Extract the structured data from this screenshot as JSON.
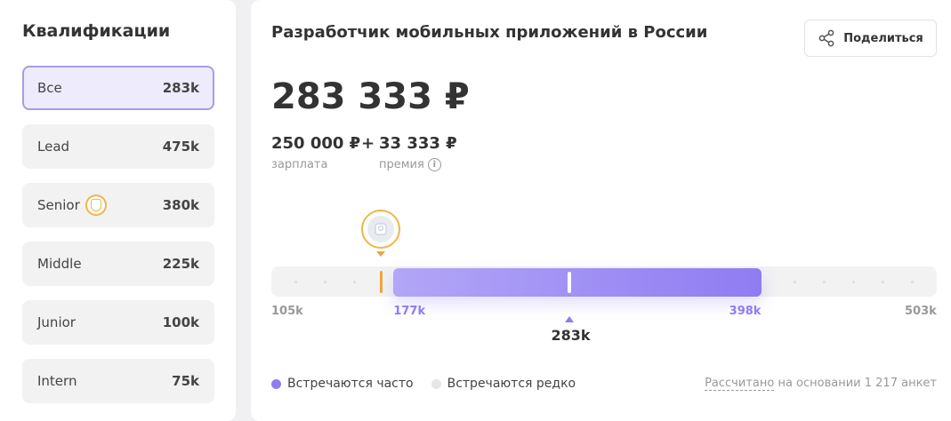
{
  "sidebar": {
    "title": "Квалификации",
    "items": [
      {
        "name": "Все",
        "value": "283k",
        "active": true
      },
      {
        "name": "Lead",
        "value": "475k"
      },
      {
        "name": "Senior",
        "value": "380k",
        "badge": "senior-badge-icon"
      },
      {
        "name": "Middle",
        "value": "225k"
      },
      {
        "name": "Junior",
        "value": "100k"
      },
      {
        "name": "Intern",
        "value": "75k"
      }
    ]
  },
  "main": {
    "title": "Разработчик мобильных приложений в России",
    "share_label": "Поделиться",
    "total": "283 333 ₽",
    "salary_value": "250 000 ₽",
    "plus": "+",
    "bonus_value": "33 333 ₽",
    "salary_label": "зарплата",
    "bonus_label": "премия",
    "info_glyph": "i"
  },
  "chart_data": {
    "type": "range",
    "min": 105,
    "max": 503,
    "frequent_from": 177,
    "frequent_to": 398,
    "median": 283,
    "user_marker": 177,
    "unit": "k",
    "tick_labels": {
      "min": "105k",
      "frequent_from": "177k",
      "frequent_to": "398k",
      "max": "503k"
    },
    "median_label": "283k"
  },
  "legend": {
    "frequent": "Встречаются часто",
    "rare": "Встречаются редко",
    "frequent_color": "#8f7cf2",
    "rare_color": "#e6e6e6"
  },
  "footnote": {
    "link": "Рассчитано",
    "rest": " на основании 1 217 анкет"
  },
  "colors": {
    "accent": "#8f7cf2",
    "accent_light": "#b2a6f7",
    "user_marker": "#f0a53a"
  }
}
